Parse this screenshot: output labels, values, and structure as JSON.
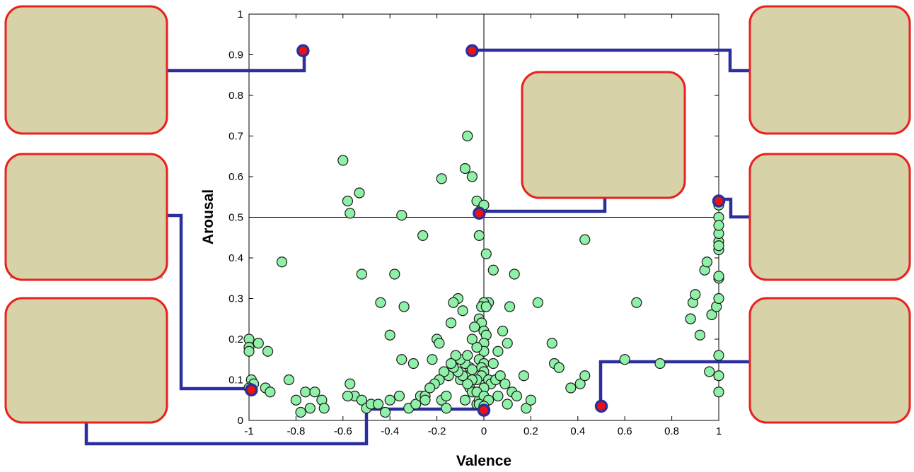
{
  "chart_data": {
    "type": "scatter",
    "xlabel": "Valence",
    "ylabel": "Arousal",
    "xlim": [
      -1,
      1
    ],
    "ylim": [
      0,
      1
    ],
    "xticks": [
      -1,
      -0.8,
      -0.6,
      -0.4,
      -0.2,
      0,
      0.2,
      0.4,
      0.6,
      0.8,
      1
    ],
    "xtick_labels": [
      "-1",
      "-0.8",
      "-0.6",
      "-0.4",
      "-0.2",
      "0",
      "0.2",
      "0.4",
      "0.6",
      "0.8",
      "1"
    ],
    "yticks": [
      0,
      0.1,
      0.2,
      0.3,
      0.4,
      0.5,
      0.6,
      0.7,
      0.8,
      0.9,
      1
    ],
    "ytick_labels": [
      "0",
      "0.1",
      "0.2",
      "0.3",
      "0.4",
      "0.5",
      "0.6",
      "0.7",
      "0.8",
      "0.9",
      "1"
    ],
    "reference_lines": {
      "x": 0,
      "y": 0.5
    },
    "point_color": "#8ff0a8",
    "highlight_color": "#ef1111",
    "connector_color": "#2b2f9c",
    "frame_color": "#e8221f",
    "points": [
      [
        -1.0,
        0.2
      ],
      [
        -1.0,
        0.18
      ],
      [
        -1.0,
        0.17
      ],
      [
        -0.96,
        0.19
      ],
      [
        -0.92,
        0.17
      ],
      [
        -0.99,
        0.1
      ],
      [
        -0.98,
        0.09
      ],
      [
        -1.0,
        0.08
      ],
      [
        -0.93,
        0.08
      ],
      [
        -0.91,
        0.07
      ],
      [
        -0.86,
        0.39
      ],
      [
        -0.83,
        0.1
      ],
      [
        -0.8,
        0.05
      ],
      [
        -0.78,
        0.02
      ],
      [
        -0.76,
        0.07
      ],
      [
        -0.72,
        0.07
      ],
      [
        -0.69,
        0.05
      ],
      [
        -0.68,
        0.03
      ],
      [
        -0.6,
        0.64
      ],
      [
        -0.58,
        0.54
      ],
      [
        -0.57,
        0.51
      ],
      [
        -0.57,
        0.09
      ],
      [
        -0.55,
        0.06
      ],
      [
        -0.53,
        0.56
      ],
      [
        -0.52,
        0.36
      ],
      [
        -0.52,
        0.05
      ],
      [
        -0.5,
        0.03
      ],
      [
        -0.48,
        0.04
      ],
      [
        -0.44,
        0.29
      ],
      [
        -0.42,
        0.02
      ],
      [
        -0.4,
        0.21
      ],
      [
        -0.4,
        0.05
      ],
      [
        -0.38,
        0.36
      ],
      [
        -0.36,
        0.06
      ],
      [
        -0.35,
        0.505
      ],
      [
        -0.35,
        0.15
      ],
      [
        -0.34,
        0.28
      ],
      [
        -0.32,
        0.03
      ],
      [
        -0.3,
        0.14
      ],
      [
        -0.29,
        0.04
      ],
      [
        -0.27,
        0.06
      ],
      [
        -0.25,
        0.06
      ],
      [
        -0.22,
        0.15
      ],
      [
        -0.2,
        0.2
      ],
      [
        -0.19,
        0.19
      ],
      [
        -0.18,
        0.05
      ],
      [
        -0.16,
        0.03
      ],
      [
        -0.14,
        0.24
      ],
      [
        -0.12,
        0.15
      ],
      [
        -0.1,
        0.1
      ],
      [
        -0.08,
        0.05
      ],
      [
        -0.06,
        0.08
      ],
      [
        -0.05,
        0.07
      ],
      [
        -0.03,
        0.04
      ],
      [
        -0.02,
        0.05
      ],
      [
        -0.26,
        0.455
      ],
      [
        -0.18,
        0.595
      ],
      [
        -0.08,
        0.62
      ],
      [
        -0.07,
        0.7
      ],
      [
        -0.05,
        0.6
      ],
      [
        -0.03,
        0.54
      ],
      [
        -0.02,
        0.455
      ],
      [
        -0.01,
        0.52
      ],
      [
        0.0,
        0.53
      ],
      [
        0.01,
        0.41
      ],
      [
        0.04,
        0.37
      ],
      [
        -0.02,
        0.25
      ],
      [
        -0.01,
        0.24
      ],
      [
        0.0,
        0.22
      ],
      [
        0.01,
        0.21
      ],
      [
        0.02,
        0.29
      ],
      [
        0.0,
        0.29
      ],
      [
        -0.01,
        0.28
      ],
      [
        0.0,
        0.19
      ],
      [
        0.0,
        0.17
      ],
      [
        -0.02,
        0.15
      ],
      [
        0.0,
        0.14
      ],
      [
        -0.01,
        0.13
      ],
      [
        0.0,
        0.12
      ],
      [
        -0.01,
        0.11
      ],
      [
        0.02,
        0.1
      ],
      [
        -0.03,
        0.1
      ],
      [
        0.03,
        0.09
      ],
      [
        0.0,
        0.08
      ],
      [
        -0.03,
        0.07
      ],
      [
        0.0,
        0.06
      ],
      [
        0.02,
        0.05
      ],
      [
        -0.02,
        0.04
      ],
      [
        0.0,
        0.035
      ],
      [
        -0.05,
        0.1
      ],
      [
        -0.07,
        0.09
      ],
      [
        -0.09,
        0.11
      ],
      [
        -0.11,
        0.12
      ],
      [
        -0.13,
        0.13
      ],
      [
        -0.15,
        0.11
      ],
      [
        -0.17,
        0.12
      ],
      [
        -0.19,
        0.1
      ],
      [
        -0.21,
        0.09
      ],
      [
        -0.23,
        0.08
      ],
      [
        -0.06,
        0.13
      ],
      [
        -0.08,
        0.14
      ],
      [
        -0.1,
        0.15
      ],
      [
        -0.12,
        0.16
      ],
      [
        -0.14,
        0.14
      ],
      [
        -0.03,
        0.18
      ],
      [
        -0.05,
        0.2
      ],
      [
        -0.09,
        0.27
      ],
      [
        -0.11,
        0.3
      ],
      [
        -0.13,
        0.29
      ],
      [
        0.05,
        0.1
      ],
      [
        0.07,
        0.11
      ],
      [
        0.09,
        0.09
      ],
      [
        0.06,
        0.06
      ],
      [
        0.1,
        0.04
      ],
      [
        0.12,
        0.07
      ],
      [
        0.14,
        0.06
      ],
      [
        0.17,
        0.11
      ],
      [
        0.18,
        0.03
      ],
      [
        0.2,
        0.05
      ],
      [
        0.06,
        0.17
      ],
      [
        0.08,
        0.22
      ],
      [
        0.1,
        0.19
      ],
      [
        0.11,
        0.28
      ],
      [
        0.13,
        0.36
      ],
      [
        0.23,
        0.29
      ],
      [
        0.29,
        0.19
      ],
      [
        0.3,
        0.14
      ],
      [
        0.32,
        0.13
      ],
      [
        0.37,
        0.08
      ],
      [
        0.41,
        0.09
      ],
      [
        0.43,
        0.11
      ],
      [
        0.43,
        0.445
      ],
      [
        0.6,
        0.15
      ],
      [
        0.65,
        0.29
      ],
      [
        0.75,
        0.14
      ],
      [
        0.88,
        0.25
      ],
      [
        0.88,
        0.25
      ],
      [
        0.89,
        0.29
      ],
      [
        0.9,
        0.31
      ],
      [
        0.92,
        0.21
      ],
      [
        0.94,
        0.37
      ],
      [
        0.95,
        0.39
      ],
      [
        0.96,
        0.12
      ],
      [
        0.97,
        0.26
      ],
      [
        0.99,
        0.28
      ],
      [
        1.0,
        0.07
      ],
      [
        1.0,
        0.11
      ],
      [
        1.0,
        0.16
      ],
      [
        1.0,
        0.3
      ],
      [
        1.0,
        0.35
      ],
      [
        1.0,
        0.355
      ],
      [
        1.0,
        0.44
      ],
      [
        1.0,
        0.42
      ],
      [
        1.0,
        0.43
      ],
      [
        1.0,
        0.46
      ],
      [
        1.0,
        0.5
      ],
      [
        1.0,
        0.48
      ],
      [
        1.0,
        0.53
      ],
      [
        -0.74,
        0.03
      ],
      [
        -0.05,
        0.125
      ],
      [
        -0.04,
        0.23
      ],
      [
        0.01,
        0.28
      ],
      [
        -0.07,
        0.16
      ],
      [
        0.04,
        0.14
      ],
      [
        -0.16,
        0.06
      ],
      [
        -0.25,
        0.05
      ],
      [
        -0.45,
        0.04
      ],
      [
        -0.58,
        0.06
      ]
    ],
    "highlighted": [
      {
        "x": -0.77,
        "y": 0.91
      },
      {
        "x": -0.05,
        "y": 0.91
      },
      {
        "x": -0.02,
        "y": 0.51
      },
      {
        "x": 1.0,
        "y": 0.54
      },
      {
        "x": -0.99,
        "y": 0.075
      },
      {
        "x": 0.0,
        "y": 0.025
      },
      {
        "x": 0.5,
        "y": 0.035
      }
    ]
  }
}
